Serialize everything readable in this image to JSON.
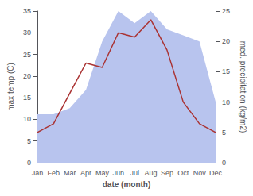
{
  "chart_data": {
    "type": "line",
    "xlabel": "date (month)",
    "ylabel": "max temp (C)",
    "y2label": "med. precipitation (kg/m2)",
    "categories": [
      "Jan",
      "Feb",
      "Mar",
      "Apr",
      "May",
      "Jun",
      "Jul",
      "Aug",
      "Sep",
      "Oct",
      "Nov",
      "Dec"
    ],
    "series": [
      {
        "type": "area",
        "axis": "y2",
        "color": "#b8c4ee",
        "values": [
          8,
          8,
          9,
          12,
          20,
          25,
          23,
          25,
          22,
          21,
          20,
          10
        ]
      },
      {
        "type": "line",
        "color": "#aa3333",
        "values": [
          7,
          9,
          16,
          23,
          22,
          30,
          29,
          33,
          26,
          14,
          9,
          7
        ]
      }
    ],
    "ylim": [
      0,
      35
    ],
    "yticks": [
      0,
      5,
      10,
      15,
      20,
      25,
      30,
      35
    ],
    "y2lim": [
      0,
      25
    ],
    "y2ticks": [
      0,
      5,
      10,
      15,
      20,
      25
    ],
    "grid": false
  }
}
